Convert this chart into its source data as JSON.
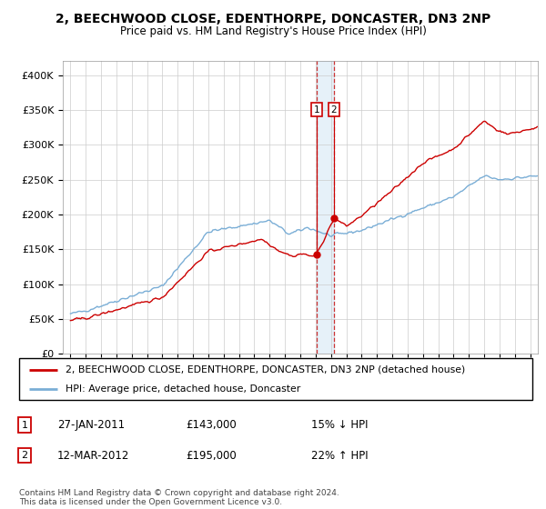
{
  "title": "2, BEECHWOOD CLOSE, EDENTHORPE, DONCASTER, DN3 2NP",
  "subtitle": "Price paid vs. HM Land Registry's House Price Index (HPI)",
  "legend_property": "2, BEECHWOOD CLOSE, EDENTHORPE, DONCASTER, DN3 2NP (detached house)",
  "legend_hpi": "HPI: Average price, detached house, Doncaster",
  "transaction1_label": "1",
  "transaction1_date": "27-JAN-2011",
  "transaction1_price": "£143,000",
  "transaction1_pct": "15% ↓ HPI",
  "transaction2_label": "2",
  "transaction2_date": "12-MAR-2012",
  "transaction2_price": "£195,000",
  "transaction2_pct": "22% ↑ HPI",
  "footer": "Contains HM Land Registry data © Crown copyright and database right 2024.\nThis data is licensed under the Open Government Licence v3.0.",
  "property_color": "#cc0000",
  "hpi_color": "#7aaed6",
  "vline1_x": 2011.07,
  "vline2_x": 2012.2,
  "marker1_y": 143000,
  "marker2_y": 195000,
  "ylim": [
    0,
    420000
  ],
  "yticks": [
    0,
    50000,
    100000,
    150000,
    200000,
    250000,
    300000,
    350000,
    400000
  ],
  "xlim": [
    1994.5,
    2025.5
  ]
}
